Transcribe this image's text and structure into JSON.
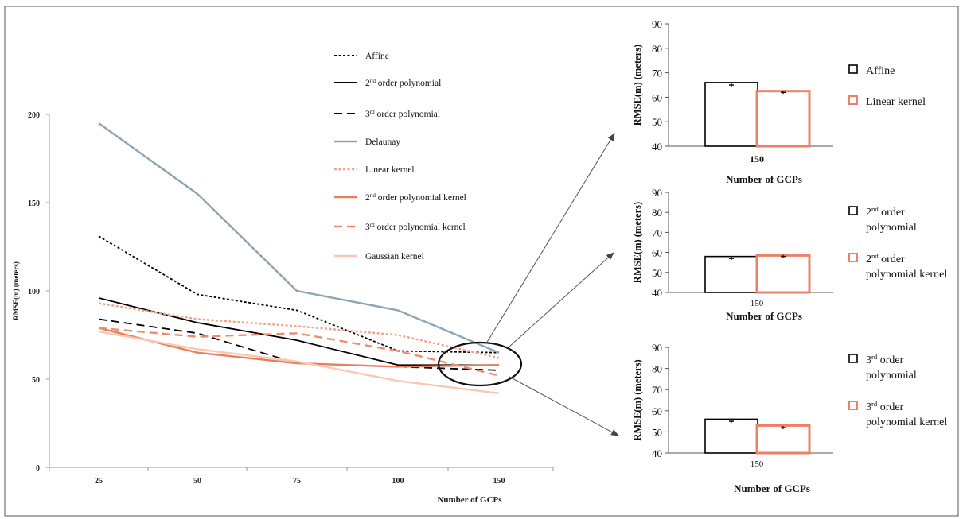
{
  "chart_data": [
    {
      "type": "line",
      "title": "",
      "xlabel": "Number of GCPs",
      "ylabel": "RMSE(m) (meters)",
      "categories": [
        "25",
        "50",
        "75",
        "100",
        "150"
      ],
      "ylim": [
        0,
        200
      ],
      "yticks": [
        "0",
        "50",
        "100",
        "150",
        "200"
      ],
      "grid": false,
      "legend_position": "top-center",
      "series": [
        {
          "name": "Affine",
          "color": "#000000",
          "dash": "dotted",
          "values": [
            131,
            98,
            89,
            66,
            65
          ]
        },
        {
          "name": "2nd order polynomial",
          "color": "#000000",
          "dash": "solid",
          "values": [
            96,
            82,
            72,
            58,
            58
          ]
        },
        {
          "name": "3rd order polynomial",
          "color": "#000000",
          "dash": "dashed",
          "values": [
            84,
            76,
            59,
            57,
            55
          ]
        },
        {
          "name": "Delaunay",
          "color": "#8ea4b4",
          "dash": "solid",
          "values": [
            195,
            155,
            100,
            89,
            65
          ]
        },
        {
          "name": "Linear kernel",
          "color": "#f2a48a",
          "dash": "dotted",
          "values": [
            93,
            84,
            80,
            75,
            62
          ]
        },
        {
          "name": "2nd order polynomial kernel",
          "color": "#ee7d5c",
          "dash": "solid",
          "values": [
            79,
            65,
            59,
            57,
            58
          ]
        },
        {
          "name": "3rd order polynomial kernel",
          "color": "#f08c6c",
          "dash": "dashed",
          "values": [
            79,
            74,
            76,
            66,
            52
          ]
        },
        {
          "name": "Gaussian kernel",
          "color": "#f8c8b2",
          "dash": "solid",
          "values": [
            77,
            67,
            60,
            49,
            42
          ]
        }
      ],
      "legend_labels": [
        {
          "text": "Affine",
          "sup": "",
          "rest": ""
        },
        {
          "text": "2",
          "sup": "nd",
          "rest": " order polynomial"
        },
        {
          "text": "3",
          "sup": "rd",
          "rest": " order polynomial"
        },
        {
          "text": "Delaunay",
          "sup": "",
          "rest": ""
        },
        {
          "text": "Linear kernel",
          "sup": "",
          "rest": ""
        },
        {
          "text": "2",
          "sup": "nd",
          "rest": " order polynomial kernel"
        },
        {
          "text": "3",
          "sup": "rd",
          "rest": " order polynomial kernel"
        },
        {
          "text": "Gaussian kernel",
          "sup": "",
          "rest": ""
        }
      ]
    },
    {
      "type": "bar",
      "categories": [
        "150"
      ],
      "xlabel": "Number of GCPs",
      "ylabel": "RMSE(m) (meters)",
      "ylim": [
        40,
        90
      ],
      "yticks": [
        "40",
        "50",
        "60",
        "70",
        "80",
        "90"
      ],
      "series": [
        {
          "name": "Affine",
          "color": "#000000",
          "values": [
            66
          ],
          "error": [
            65
          ]
        },
        {
          "name": "Linear kernel",
          "color": "#f07f68",
          "values": [
            62.5
          ],
          "error": [
            62
          ]
        }
      ],
      "legend": [
        {
          "lines": [
            {
              "text": "Affine",
              "sup": "",
              "rest": ""
            }
          ]
        },
        {
          "lines": [
            {
              "text": "Linear kernel",
              "sup": "",
              "rest": ""
            }
          ]
        }
      ]
    },
    {
      "type": "bar",
      "categories": [
        "150"
      ],
      "xlabel": "Number of GCPs",
      "ylabel": "RMSE(m) (meters)",
      "ylim": [
        40,
        90
      ],
      "yticks": [
        "40",
        "50",
        "60",
        "70",
        "80",
        "90"
      ],
      "series": [
        {
          "name": "2nd order polynomial",
          "color": "#000000",
          "values": [
            58
          ],
          "error": [
            57
          ]
        },
        {
          "name": "2nd order polynomial kernel",
          "color": "#f07f68",
          "values": [
            58.5
          ],
          "error": [
            58
          ]
        }
      ],
      "legend": [
        {
          "lines": [
            {
              "text": "2",
              "sup": "nd",
              "rest": " order"
            },
            {
              "text": "polynomial",
              "sup": "",
              "rest": ""
            }
          ]
        },
        {
          "lines": [
            {
              "text": "2",
              "sup": "nd",
              "rest": " order"
            },
            {
              "text": "polynomial kernel",
              "sup": "",
              "rest": ""
            }
          ]
        }
      ]
    },
    {
      "type": "bar",
      "categories": [
        "150"
      ],
      "xlabel": "Number of GCPs",
      "ylabel": "RMSE(m) (meters)",
      "ylim": [
        40,
        90
      ],
      "yticks": [
        "40",
        "50",
        "60",
        "70",
        "80",
        "90"
      ],
      "series": [
        {
          "name": "3rd order polynomial",
          "color": "#000000",
          "values": [
            56
          ],
          "error": [
            55
          ]
        },
        {
          "name": "3rd order polynomial kernel",
          "color": "#f07f68",
          "values": [
            53
          ],
          "error": [
            52
          ]
        }
      ],
      "legend": [
        {
          "lines": [
            {
              "text": "3",
              "sup": "rd",
              "rest": " order"
            },
            {
              "text": "polynomial",
              "sup": "",
              "rest": ""
            }
          ]
        },
        {
          "lines": [
            {
              "text": "3",
              "sup": "rd",
              "rest": " order"
            },
            {
              "text": "polynomial kernel",
              "sup": "",
              "rest": ""
            }
          ]
        }
      ]
    }
  ]
}
